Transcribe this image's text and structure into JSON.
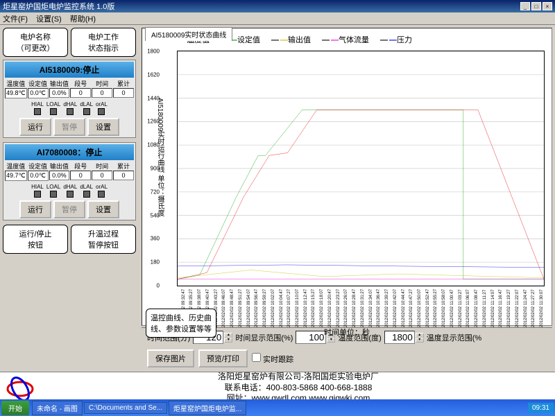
{
  "window": {
    "title": "炬星窑炉国炬电炉监控系统 1.0版"
  },
  "menu": {
    "file": "文件(F)",
    "settings": "设置(S)",
    "help": "帮助(H)"
  },
  "callouts": {
    "name": "电炉名称\n（可更改）",
    "state": "电炉工作\n状态指示",
    "runstop": "运行/停止\n按钮",
    "pause": "升温过程\n暂停按钮",
    "curves": "温控曲线、历史曲\n线、参数设置等等"
  },
  "panels": [
    {
      "title": "AI5180009:停止",
      "cols": [
        "温度值",
        "设定值",
        "输出值",
        "段号",
        "时间",
        "累计"
      ],
      "vals": [
        "49.8℃",
        "0.0℃",
        "0.0%",
        "0",
        "0",
        "0"
      ],
      "alarms": [
        "HIAL",
        "LOAL",
        "dHAL",
        "dLAL",
        "orAL"
      ],
      "btns": [
        "运行",
        "暂停",
        "设置"
      ]
    },
    {
      "title": "AI7080008：停止",
      "cols": [
        "温度值",
        "设定值",
        "输出值",
        "段号",
        "时间",
        "累计"
      ],
      "vals": [
        "49.7℃",
        "0.0℃",
        "0.0%",
        "0",
        "0",
        "0"
      ],
      "alarms": [
        "HIAL",
        "LOAL",
        "dHAL",
        "dLAL",
        "orAL"
      ],
      "btns": [
        "运行",
        "暂停",
        "设置"
      ]
    }
  ],
  "chart": {
    "tab": "AI5180009实时状态曲线",
    "legend": [
      {
        "label": "温度值",
        "color": "#e00000"
      },
      {
        "label": "设定值",
        "color": "#00a000"
      },
      {
        "label": "输出值",
        "color": "#c0c000"
      },
      {
        "label": "气体流量",
        "color": "#e000e0"
      },
      {
        "label": "压力",
        "color": "#0000e0"
      }
    ],
    "ytitle": "AI5180009实时运行曲线 单位：摄氏度",
    "ylim": [
      0,
      1800
    ],
    "ytick_step": 180,
    "yticks": [
      0,
      180,
      360,
      540,
      720,
      900,
      1080,
      1260,
      1440,
      1620,
      1800
    ],
    "xaxis_title": "时间单位：秒",
    "xlabels": [
      "2012/02/02 09:30:07",
      "2012/02/02 09:32:47",
      "2012/02/02 09:35:27",
      "2012/02/02 09:38:07",
      "2012/02/02 09:40:47",
      "2012/02/02 09:43:27",
      "2012/02/02 09:46:07",
      "2012/02/02 09:48:47",
      "2012/02/02 09:51:27",
      "2012/02/02 09:54:07",
      "2012/02/02 09:56:47",
      "2012/02/02 09:59:27",
      "2012/02/02 10:02:07",
      "2012/02/02 10:04:47",
      "2012/02/02 10:07:27",
      "2012/02/02 10:10:07",
      "2012/02/02 10:12:47",
      "2012/02/02 10:15:27",
      "2012/02/02 10:18:07",
      "2012/02/02 10:20:47",
      "2012/02/02 10:23:27",
      "2012/02/02 10:26:07",
      "2012/02/02 10:28:47",
      "2012/02/02 10:31:27",
      "2012/02/02 10:34:07",
      "2012/02/02 10:36:47",
      "2012/02/02 10:39:27",
      "2012/02/02 10:42:07",
      "2012/02/02 10:44:47",
      "2012/02/02 10:47:27",
      "2012/02/02 10:50:07",
      "2012/02/02 10:52:47",
      "2012/02/02 10:55:27",
      "2012/02/02 10:58:07",
      "2012/02/02 11:00:47",
      "2012/02/02 11:03:27",
      "2012/02/02 11:06:07",
      "2012/02/02 11:08:47",
      "2012/02/02 11:11:27",
      "2012/02/02 11:14:07",
      "2012/02/02 11:16:47",
      "2012/02/02 11:19:27",
      "2012/02/02 11:22:07",
      "2012/02/02 11:24:47",
      "2012/02/02 11:27:27",
      "2012/02/02 11:30:07"
    ],
    "series": {
      "green": [
        [
          0,
          50
        ],
        [
          6,
          80
        ],
        [
          16,
          680
        ],
        [
          22,
          1000
        ],
        [
          24,
          1000
        ],
        [
          34,
          1350
        ],
        [
          78,
          1350
        ],
        [
          78,
          50
        ],
        [
          100,
          50
        ]
      ],
      "red": [
        [
          0,
          50
        ],
        [
          8,
          100
        ],
        [
          18,
          680
        ],
        [
          25,
          1000
        ],
        [
          30,
          1020
        ],
        [
          38,
          1350
        ],
        [
          82,
          1350
        ],
        [
          100,
          50
        ]
      ],
      "yellow": [
        [
          0,
          60
        ],
        [
          20,
          120
        ],
        [
          40,
          70
        ],
        [
          60,
          90
        ],
        [
          100,
          60
        ]
      ],
      "blue": [
        [
          0,
          150
        ],
        [
          30,
          160
        ],
        [
          60,
          150
        ],
        [
          100,
          140
        ]
      ],
      "magenta": [
        [
          0,
          50
        ],
        [
          100,
          50
        ]
      ]
    }
  },
  "controls": {
    "time_range_lbl": "时间范围(分)",
    "time_range": "120",
    "time_disp_lbl": "时间显示范围(%)",
    "time_disp": "100",
    "temp_range_lbl": "温度范围(度)",
    "temp_range": "1800",
    "temp_disp_lbl": "温度显示范围(%",
    "save_img": "保存图片",
    "preview": "预览/打印",
    "realtime": "实时跟踪"
  },
  "footer": {
    "line1": "洛阳炬星窑炉有限公司-洛阳国炬实验电炉厂",
    "line2": "联系电话：400-803-5868 400-668-1888",
    "line3": "网址：www.gwdl.com www.gigwki.com"
  },
  "taskbar": {
    "start": "开始",
    "b1": "未命名 - 画图",
    "b2": "C:\\Documents and Se...",
    "b3": "炬星窑炉国炬电炉监...",
    "time": "09:31"
  }
}
